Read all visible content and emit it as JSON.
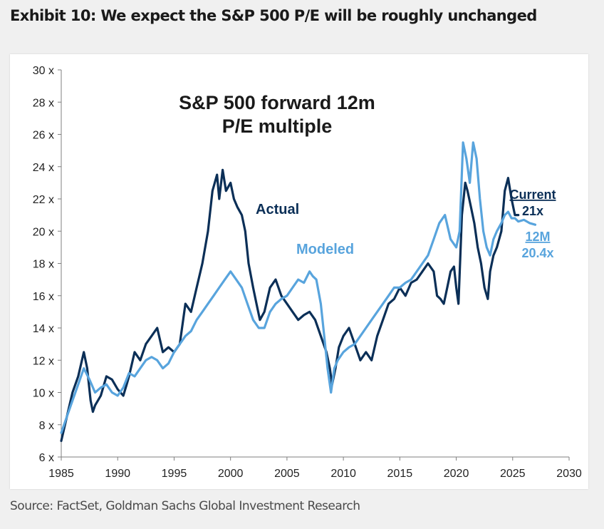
{
  "exhibit_title": "Exhibit 10: We expect the S&P 500 P/E will be roughly unchanged",
  "source": "Source: FactSet, Goldman Sachs Global Investment Research",
  "colors": {
    "actual": "#0b2f57",
    "modeled": "#58a4dd",
    "axis": "#7f7f7f",
    "text": "#222222"
  },
  "chart_data": {
    "type": "line",
    "title_lines": [
      "S&P 500 forward 12m",
      "P/E multiple"
    ],
    "xlim": [
      1985,
      2030
    ],
    "ylim": [
      6,
      30
    ],
    "x_ticks": [
      1985,
      1990,
      1995,
      2000,
      2005,
      2010,
      2015,
      2020,
      2025,
      2030
    ],
    "x_tick_labels": [
      "1985",
      "1990",
      "1995",
      "2000",
      "2005",
      "2010",
      "2015",
      "2020",
      "2025",
      "2030"
    ],
    "y_ticks": [
      6,
      8,
      10,
      12,
      14,
      16,
      18,
      20,
      22,
      24,
      26,
      28,
      30
    ],
    "y_tick_labels": [
      "6 x",
      "8 x",
      "10 x",
      "12 x",
      "14 x",
      "16 x",
      "18 x",
      "20 x",
      "22 x",
      "24 x",
      "26 x",
      "28 x",
      "30 x"
    ],
    "grid": false,
    "series": [
      {
        "name": "Actual",
        "label": "Actual",
        "x": [
          1985.0,
          1985.5,
          1986.0,
          1986.5,
          1987.0,
          1987.3,
          1987.6,
          1987.8,
          1988.0,
          1988.5,
          1989.0,
          1989.5,
          1990.0,
          1990.5,
          1990.8,
          1991.0,
          1991.5,
          1992.0,
          1992.5,
          1993.0,
          1993.5,
          1994.0,
          1994.5,
          1995.0,
          1995.5,
          1996.0,
          1996.5,
          1997.0,
          1997.5,
          1998.0,
          1998.4,
          1998.8,
          1999.0,
          1999.3,
          1999.6,
          2000.0,
          2000.3,
          2000.6,
          2001.0,
          2001.3,
          2001.6,
          2002.0,
          2002.3,
          2002.6,
          2003.0,
          2003.5,
          2004.0,
          2004.5,
          2005.0,
          2005.5,
          2006.0,
          2006.5,
          2007.0,
          2007.5,
          2008.0,
          2008.5,
          2008.8,
          2009.0,
          2009.3,
          2009.6,
          2010.0,
          2010.5,
          2011.0,
          2011.5,
          2012.0,
          2012.5,
          2013.0,
          2013.5,
          2014.0,
          2014.5,
          2015.0,
          2015.5,
          2016.0,
          2016.5,
          2017.0,
          2017.5,
          2018.0,
          2018.3,
          2018.6,
          2018.9,
          2019.2,
          2019.5,
          2019.8,
          2020.0,
          2020.2,
          2020.5,
          2020.8,
          2021.0,
          2021.3,
          2021.6,
          2021.9,
          2022.2,
          2022.5,
          2022.8,
          2023.0,
          2023.3,
          2023.6,
          2024.0,
          2024.3,
          2024.6,
          2024.9,
          2025.2,
          2025.5
        ],
        "y": [
          7.0,
          8.5,
          10.0,
          11.0,
          12.5,
          11.5,
          9.5,
          8.8,
          9.2,
          9.8,
          11.0,
          10.8,
          10.2,
          9.8,
          10.5,
          11.0,
          12.5,
          12.0,
          13.0,
          13.5,
          14.0,
          12.5,
          12.8,
          12.5,
          13.0,
          15.5,
          15.0,
          16.5,
          18.0,
          20.0,
          22.5,
          23.5,
          22.0,
          23.8,
          22.5,
          23.0,
          22.0,
          21.5,
          21.0,
          20.0,
          18.0,
          16.5,
          15.5,
          14.5,
          15.0,
          16.5,
          17.0,
          16.0,
          15.5,
          15.0,
          14.5,
          14.8,
          15.0,
          14.5,
          13.5,
          12.5,
          11.5,
          10.5,
          11.5,
          12.8,
          13.5,
          14.0,
          13.0,
          12.0,
          12.5,
          12.0,
          13.5,
          14.5,
          15.5,
          15.8,
          16.5,
          16.0,
          16.8,
          17.0,
          17.5,
          18.0,
          17.5,
          16.0,
          15.8,
          15.5,
          16.5,
          17.5,
          17.8,
          16.5,
          15.5,
          21.0,
          23.0,
          22.5,
          21.5,
          20.5,
          19.0,
          18.0,
          16.5,
          15.8,
          17.5,
          18.5,
          19.0,
          20.0,
          22.5,
          23.3,
          22.0,
          21.0,
          21.0
        ]
      },
      {
        "name": "Modeled",
        "label": "Modeled",
        "x": [
          1985.0,
          1985.5,
          1986.0,
          1986.5,
          1987.0,
          1987.5,
          1988.0,
          1988.5,
          1989.0,
          1989.5,
          1990.0,
          1990.5,
          1991.0,
          1991.5,
          1992.0,
          1992.5,
          1993.0,
          1993.5,
          1994.0,
          1994.5,
          1995.0,
          1995.5,
          1996.0,
          1996.5,
          1997.0,
          1997.5,
          1998.0,
          1998.5,
          1999.0,
          1999.5,
          2000.0,
          2000.5,
          2001.0,
          2001.5,
          2002.0,
          2002.5,
          2003.0,
          2003.5,
          2004.0,
          2004.5,
          2005.0,
          2005.5,
          2006.0,
          2006.5,
          2007.0,
          2007.3,
          2007.6,
          2008.0,
          2008.3,
          2008.6,
          2008.9,
          2009.2,
          2009.5,
          2010.0,
          2010.5,
          2011.0,
          2011.5,
          2012.0,
          2012.5,
          2013.0,
          2013.5,
          2014.0,
          2014.5,
          2015.0,
          2015.5,
          2016.0,
          2016.5,
          2017.0,
          2017.5,
          2018.0,
          2018.5,
          2019.0,
          2019.5,
          2020.0,
          2020.3,
          2020.6,
          2020.9,
          2021.2,
          2021.5,
          2021.8,
          2022.1,
          2022.4,
          2022.7,
          2023.0,
          2023.3,
          2023.6,
          2024.0,
          2024.3,
          2024.6,
          2024.9,
          2025.2,
          2025.5,
          2026.0,
          2026.5,
          2027.0
        ],
        "y": [
          7.5,
          8.5,
          9.5,
          10.5,
          11.5,
          10.8,
          10.0,
          10.3,
          10.5,
          10.0,
          9.8,
          10.3,
          11.2,
          11.0,
          11.5,
          12.0,
          12.2,
          12.0,
          11.5,
          11.8,
          12.5,
          13.0,
          13.5,
          13.8,
          14.5,
          15.0,
          15.5,
          16.0,
          16.5,
          17.0,
          17.5,
          17.0,
          16.5,
          15.5,
          14.5,
          14.0,
          14.0,
          15.0,
          15.5,
          15.8,
          16.0,
          16.5,
          17.0,
          16.8,
          17.5,
          17.2,
          17.0,
          15.5,
          13.5,
          11.5,
          10.0,
          11.5,
          12.0,
          12.5,
          12.8,
          13.0,
          13.5,
          14.0,
          14.5,
          15.0,
          15.5,
          16.0,
          16.5,
          16.5,
          16.8,
          17.0,
          17.5,
          18.0,
          18.5,
          19.5,
          20.5,
          21.0,
          19.5,
          19.0,
          20.0,
          25.5,
          24.5,
          23.0,
          25.5,
          24.5,
          22.0,
          20.0,
          19.0,
          18.5,
          19.5,
          20.0,
          20.5,
          21.0,
          21.2,
          20.8,
          20.8,
          20.6,
          20.7,
          20.5,
          20.4
        ]
      }
    ],
    "annotations": {
      "actual_label": "Actual",
      "modeled_label": "Modeled",
      "current_label": "Current",
      "current_value": "21x",
      "modeled_12m_label": "12M",
      "modeled_12m_value": "20.4x"
    }
  }
}
